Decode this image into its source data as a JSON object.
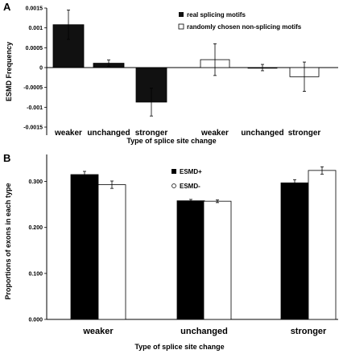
{
  "chart_data": [
    {
      "panel": "A",
      "type": "bar",
      "title": "",
      "ylabel": "ESMD Frequency",
      "xlabel": "Type of splice site change",
      "ylim": [
        -0.0015,
        0.0015
      ],
      "yticks": [
        "0.0015",
        "0.001",
        "0.0005",
        "0",
        "-0.0005",
        "-0.001",
        "-0.0015"
      ],
      "tick_values": [
        0.0015,
        0.001,
        0.0005,
        0,
        -0.0005,
        -0.001,
        -0.0015
      ],
      "groups": [
        {
          "name": "real splicing motifs",
          "categories": [
            "weaker",
            "unchanged",
            "stronger"
          ],
          "values": [
            0.00108,
            0.00011,
            -0.00087
          ],
          "errors": [
            0.00037,
            8e-05,
            0.00035
          ],
          "fill": "#111111"
        },
        {
          "name": "randomly chosen non-splicing motifs",
          "categories": [
            "weaker",
            "unchanged",
            "stronger"
          ],
          "values": [
            0.0002,
            0.0,
            -0.00023
          ],
          "errors": [
            0.0004,
            8e-05,
            0.00037
          ],
          "fill": "#ffffff"
        }
      ],
      "legend_position": "top-right",
      "grid": false
    },
    {
      "panel": "B",
      "type": "bar",
      "title": "",
      "ylabel": "Proportions of exons in each type",
      "xlabel": "Type of splice site change",
      "categories": [
        "weaker",
        "unchanged",
        "stronger"
      ],
      "ylim": [
        0,
        0.35
      ],
      "yticks": [
        "0.000",
        "0.100",
        "0.200",
        "0.300"
      ],
      "tick_values": [
        0,
        0.1,
        0.2,
        0.3
      ],
      "series": [
        {
          "name": "ESMD+",
          "values": [
            0.315,
            0.258,
            0.297
          ],
          "errors": [
            0.007,
            0.003,
            0.007
          ],
          "fill": "#000000"
        },
        {
          "name": "ESMD-",
          "values": [
            0.293,
            0.257,
            0.324
          ],
          "errors": [
            0.008,
            0.003,
            0.008
          ],
          "fill": "#ffffff"
        }
      ],
      "legend_position": "center-top",
      "grid": false
    }
  ]
}
